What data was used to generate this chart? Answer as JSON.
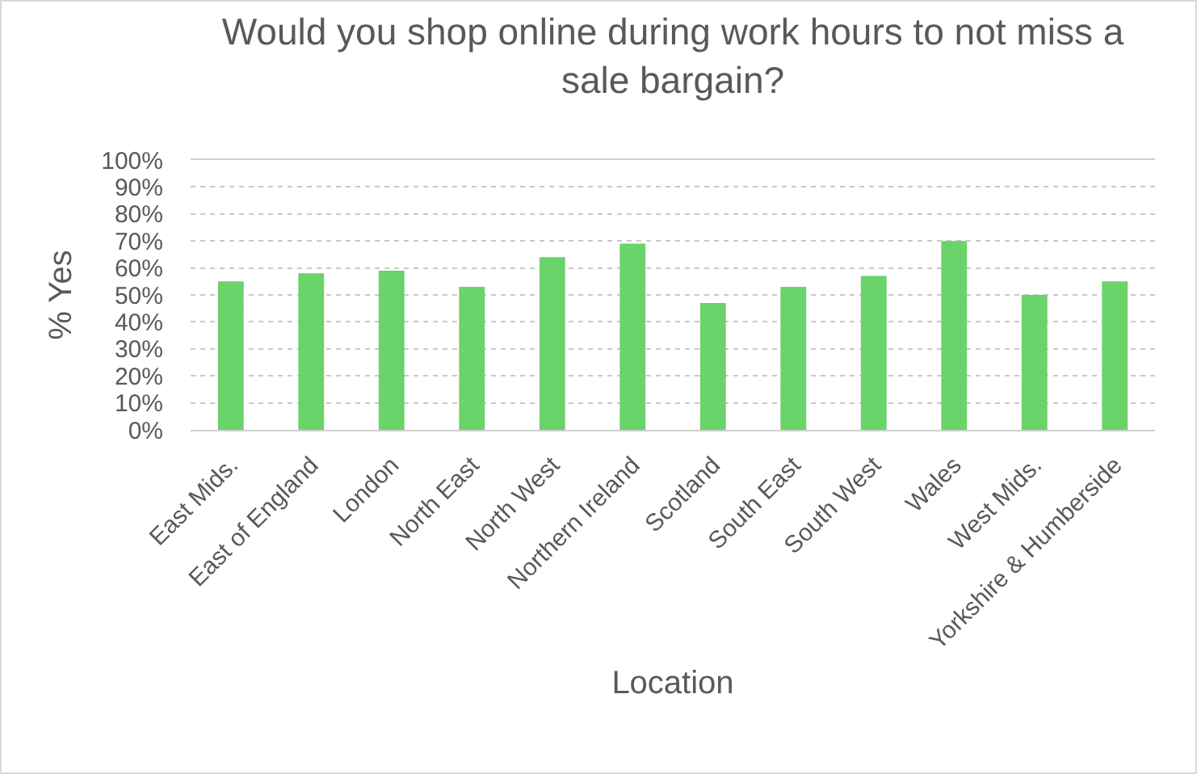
{
  "chart_data": {
    "type": "bar",
    "title": "Would you shop online during work hours to not miss a sale bargain?",
    "xlabel": "Location",
    "ylabel": "% Yes",
    "categories": [
      "East Mids.",
      "East of England",
      "London",
      "North East",
      "North West",
      "Northern Ireland",
      "Scotland",
      "South East",
      "South West",
      "Wales",
      "West Mids.",
      "Yorkshire & Humberside"
    ],
    "values": [
      55,
      58,
      59,
      53,
      64,
      69,
      47,
      53,
      57,
      70,
      50,
      55
    ],
    "color": "#6ad36a",
    "ylim": [
      0,
      100
    ],
    "yticks": [
      {
        "value": 0,
        "label": "0%"
      },
      {
        "value": 10,
        "label": "10%"
      },
      {
        "value": 20,
        "label": "20%"
      },
      {
        "value": 30,
        "label": "30%"
      },
      {
        "value": 40,
        "label": "40%"
      },
      {
        "value": 50,
        "label": "50%"
      },
      {
        "value": 60,
        "label": "60%"
      },
      {
        "value": 70,
        "label": "70%"
      },
      {
        "value": 80,
        "label": "80%"
      },
      {
        "value": 90,
        "label": "90%"
      },
      {
        "value": 100,
        "label": "100%"
      }
    ],
    "grid": "y"
  }
}
